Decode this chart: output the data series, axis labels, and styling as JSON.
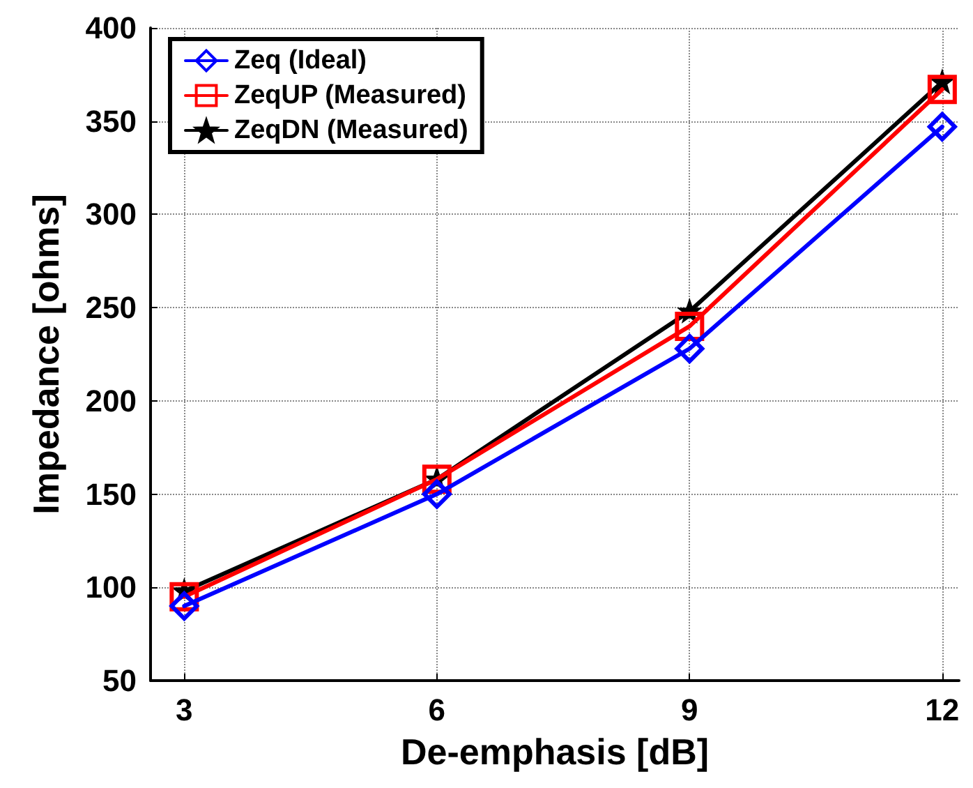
{
  "chart_data": {
    "type": "line",
    "xlabel": "De-emphasis [dB]",
    "ylabel": "Impedance [ohms]",
    "x": [
      3,
      6,
      9,
      12
    ],
    "xlim": [
      2.6,
      12.2
    ],
    "xticks": [
      3,
      6,
      9,
      12
    ],
    "ylim": [
      50,
      400
    ],
    "yticks": [
      50,
      100,
      150,
      200,
      250,
      300,
      350,
      400
    ],
    "grid": true,
    "legend": "top left",
    "line_style": "solid",
    "series": [
      {
        "name": "Zeq (Ideal)",
        "color": "#0000ff",
        "marker": "diamond",
        "values": [
          90,
          150,
          228,
          347
        ]
      },
      {
        "name": "ZeqUP (Measured)",
        "color": "#ff0000",
        "marker": "square",
        "values": [
          95,
          158,
          240,
          367
        ]
      },
      {
        "name": "ZeqDN (Measured)",
        "color": "#000000",
        "marker": "star",
        "values": [
          98,
          158,
          248,
          371
        ]
      }
    ]
  }
}
